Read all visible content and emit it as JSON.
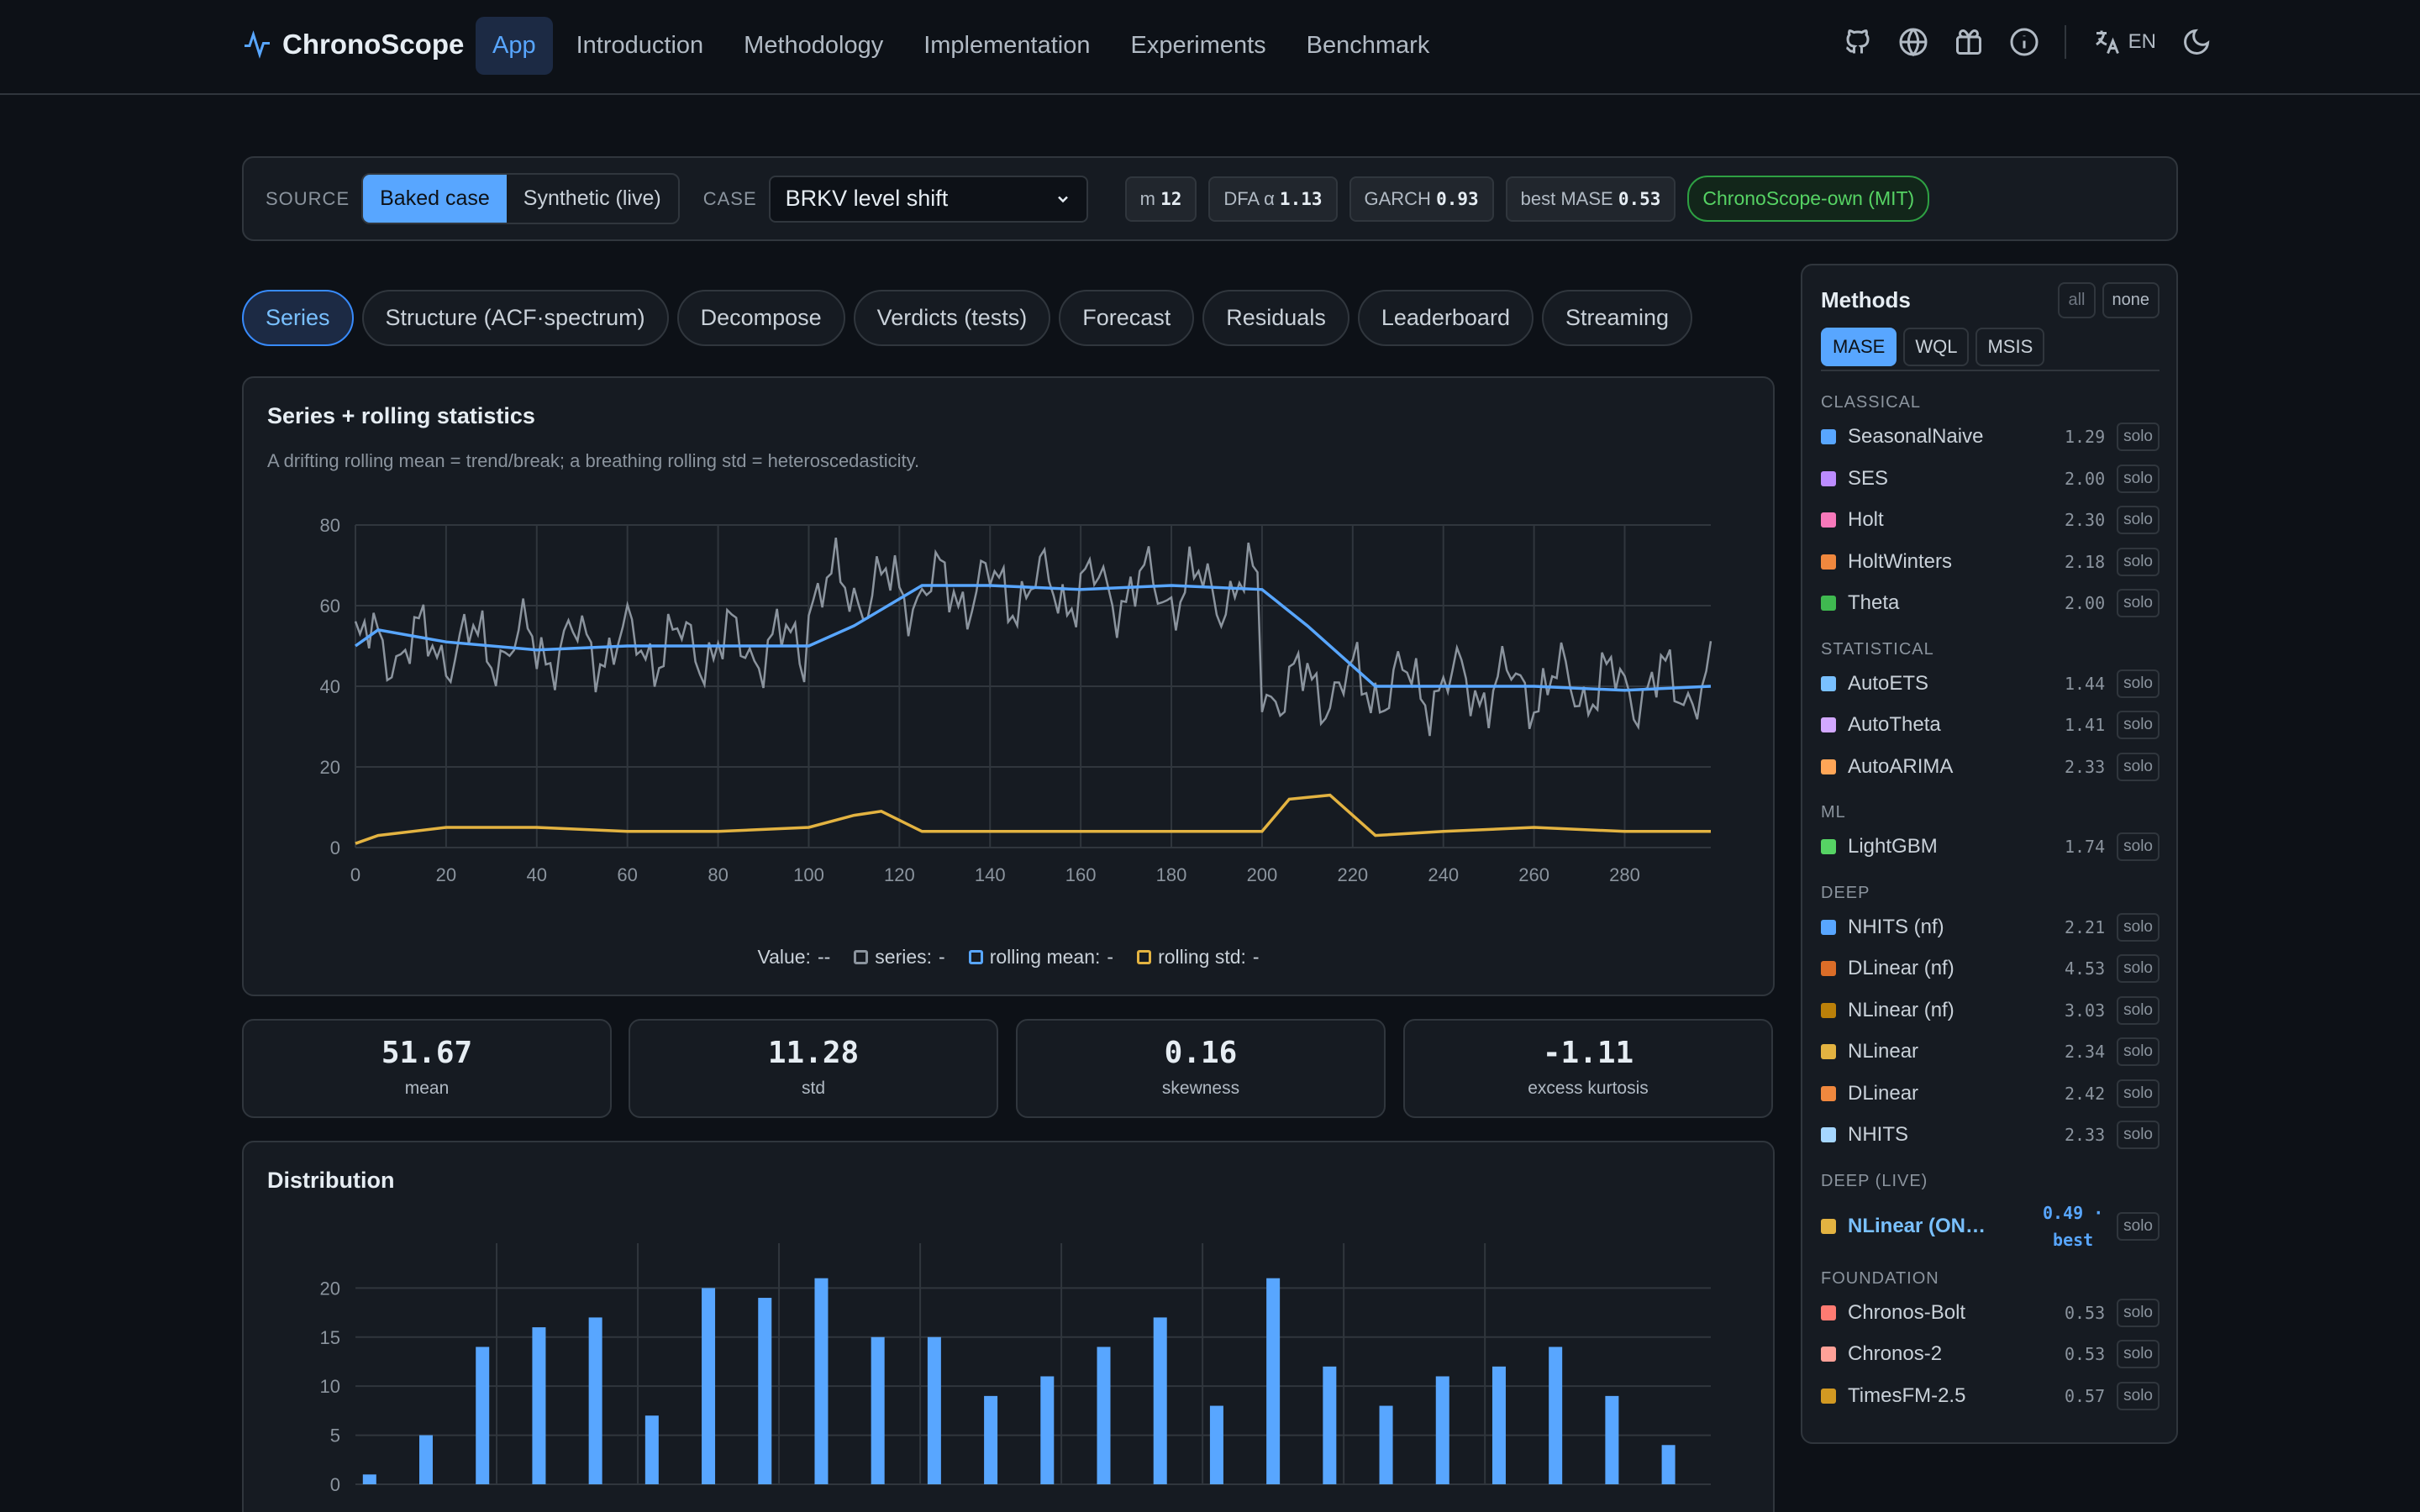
{
  "nav": {
    "brand": "ChronoScope",
    "links": [
      "App",
      "Introduction",
      "Methodology",
      "Implementation",
      "Experiments",
      "Benchmark"
    ],
    "active": "App",
    "lang": "EN",
    "icons": [
      "github-icon",
      "globe-icon",
      "gift-icon",
      "info-icon",
      "translate-icon",
      "moon-icon"
    ]
  },
  "source": {
    "label": "SOURCE",
    "options": [
      "Baked case",
      "Synthetic (live)"
    ],
    "selected": "Baked case",
    "case_label": "CASE",
    "case_value": "BRKV level shift",
    "chips": [
      {
        "k": "m",
        "v": "12"
      },
      {
        "k": "DFA α",
        "v": "1.13"
      },
      {
        "k": "GARCH",
        "v": "0.93"
      },
      {
        "k": "best MASE",
        "v": "0.53"
      }
    ],
    "license": "ChronoScope-own (MIT)"
  },
  "tabs": [
    "Series",
    "Structure (ACF·spectrum)",
    "Decompose",
    "Verdicts (tests)",
    "Forecast",
    "Residuals",
    "Leaderboard",
    "Streaming"
  ],
  "active_tab": "Series",
  "series_card": {
    "title": "Series + rolling statistics",
    "subtitle": "A drifting rolling mean = trend/break; a breathing rolling std = heteroscedasticity.",
    "legend": {
      "value_label": "Value:",
      "value_val": "--",
      "items": [
        {
          "label": "series:",
          "val": "-",
          "color": "#8b949e"
        },
        {
          "label": "rolling mean:",
          "val": "-",
          "color": "#58a6ff"
        },
        {
          "label": "rolling std:",
          "val": "-",
          "color": "#e3b341"
        }
      ]
    }
  },
  "stats": [
    {
      "value": "51.67",
      "label": "mean"
    },
    {
      "value": "11.28",
      "label": "std"
    },
    {
      "value": "0.16",
      "label": "skewness"
    },
    {
      "value": "-1.11",
      "label": "excess kurtosis"
    }
  ],
  "dist_card": {
    "title": "Distribution"
  },
  "chart_data": [
    {
      "type": "line",
      "title": "Series + rolling statistics",
      "xlim": [
        0,
        299
      ],
      "ylim": [
        0,
        80
      ],
      "xticks": [
        0,
        20,
        40,
        60,
        80,
        100,
        120,
        140,
        160,
        180,
        200,
        220,
        240,
        260,
        280
      ],
      "yticks": [
        0,
        20,
        40,
        60,
        80
      ],
      "grid": true,
      "series": [
        {
          "name": "series",
          "color": "#8b949e",
          "segments": [
            {
              "x0": 0,
              "x1": 100,
              "level": 50
            },
            {
              "x0": 100,
              "x1": 200,
              "level": 64
            },
            {
              "x0": 200,
              "x1": 299,
              "level": 40
            }
          ]
        },
        {
          "name": "rolling mean",
          "color": "#58a6ff",
          "points": [
            [
              0,
              50
            ],
            [
              5,
              54
            ],
            [
              20,
              51
            ],
            [
              40,
              49
            ],
            [
              60,
              50
            ],
            [
              80,
              50
            ],
            [
              100,
              50
            ],
            [
              110,
              55
            ],
            [
              125,
              65
            ],
            [
              140,
              65
            ],
            [
              160,
              64
            ],
            [
              180,
              65
            ],
            [
              200,
              64
            ],
            [
              210,
              55
            ],
            [
              225,
              40
            ],
            [
              240,
              40
            ],
            [
              260,
              40
            ],
            [
              280,
              39
            ],
            [
              299,
              40
            ]
          ]
        },
        {
          "name": "rolling std",
          "color": "#e3b341",
          "points": [
            [
              0,
              1
            ],
            [
              5,
              3
            ],
            [
              20,
              5
            ],
            [
              40,
              5
            ],
            [
              60,
              4
            ],
            [
              80,
              4
            ],
            [
              100,
              5
            ],
            [
              110,
              8
            ],
            [
              116,
              9
            ],
            [
              125,
              4
            ],
            [
              140,
              4
            ],
            [
              160,
              4
            ],
            [
              180,
              4
            ],
            [
              200,
              4
            ],
            [
              206,
              12
            ],
            [
              215,
              13
            ],
            [
              225,
              3
            ],
            [
              240,
              4
            ],
            [
              260,
              5
            ],
            [
              280,
              4
            ],
            [
              299,
              4
            ]
          ]
        }
      ]
    },
    {
      "type": "bar",
      "title": "Distribution",
      "ylim": [
        0,
        22
      ],
      "yticks": [
        0,
        5,
        10,
        15,
        20
      ],
      "xlim": [
        30,
        78
      ],
      "xticks": [
        35,
        40,
        45,
        50,
        55,
        60,
        65,
        70
      ],
      "bin_centers": [
        30.5,
        32.5,
        34.5,
        36.5,
        38.5,
        40.5,
        42.5,
        44.5,
        46.5,
        48.5,
        50.5,
        52.5,
        54.5,
        56.5,
        58.5,
        60.5,
        62.5,
        64.5,
        66.5,
        68.5,
        70.5,
        72.5,
        74.5,
        76.5
      ],
      "values": [
        1,
        5,
        14,
        16,
        17,
        7,
        20,
        19,
        21,
        15,
        15,
        9,
        11,
        14,
        17,
        8,
        21,
        12,
        8,
        11,
        12,
        14,
        9,
        4
      ],
      "color": "#58a6ff"
    }
  ],
  "methods": {
    "title": "Methods",
    "all": "all",
    "none": "none",
    "metric_tabs": [
      "MASE",
      "WQL",
      "MSIS"
    ],
    "metric_active": "MASE",
    "solo_label": "solo",
    "groups": [
      {
        "name": "CLASSICAL",
        "items": [
          {
            "name": "SeasonalNaive",
            "score": "1.29",
            "color": "#58a6ff"
          },
          {
            "name": "SES",
            "score": "2.00",
            "color": "#bc8cff"
          },
          {
            "name": "Holt",
            "score": "2.30",
            "color": "#f778ba"
          },
          {
            "name": "HoltWinters",
            "score": "2.18",
            "color": "#f0883e"
          },
          {
            "name": "Theta",
            "score": "2.00",
            "color": "#3fb950"
          }
        ]
      },
      {
        "name": "STATISTICAL",
        "items": [
          {
            "name": "AutoETS",
            "score": "1.44",
            "color": "#79c0ff"
          },
          {
            "name": "AutoTheta",
            "score": "1.41",
            "color": "#d2a8ff"
          },
          {
            "name": "AutoARIMA",
            "score": "2.33",
            "color": "#ffa657"
          }
        ]
      },
      {
        "name": "ML",
        "items": [
          {
            "name": "LightGBM",
            "score": "1.74",
            "color": "#56d364"
          }
        ]
      },
      {
        "name": "DEEP",
        "items": [
          {
            "name": "NHITS (nf)",
            "score": "2.21",
            "color": "#58a6ff"
          },
          {
            "name": "DLinear (nf)",
            "score": "4.53",
            "color": "#db6d28"
          },
          {
            "name": "NLinear (nf)",
            "score": "3.03",
            "color": "#bb8009"
          },
          {
            "name": "NLinear",
            "score": "2.34",
            "color": "#e3b341"
          },
          {
            "name": "DLinear",
            "score": "2.42",
            "color": "#f0883e"
          },
          {
            "name": "NHITS",
            "score": "2.33",
            "color": "#a5d6ff"
          }
        ]
      },
      {
        "name": "DEEP (LIVE)",
        "items": [
          {
            "name": "NLinear (ON…",
            "score": "0.49 · best",
            "color": "#e3b341",
            "live": true
          }
        ]
      },
      {
        "name": "FOUNDATION",
        "items": [
          {
            "name": "Chronos-Bolt",
            "score": "0.53",
            "color": "#ff7b72"
          },
          {
            "name": "Chronos-2",
            "score": "0.53",
            "color": "#ffa198"
          },
          {
            "name": "TimesFM-2.5",
            "score": "0.57",
            "color": "#d29922"
          }
        ]
      }
    ]
  }
}
